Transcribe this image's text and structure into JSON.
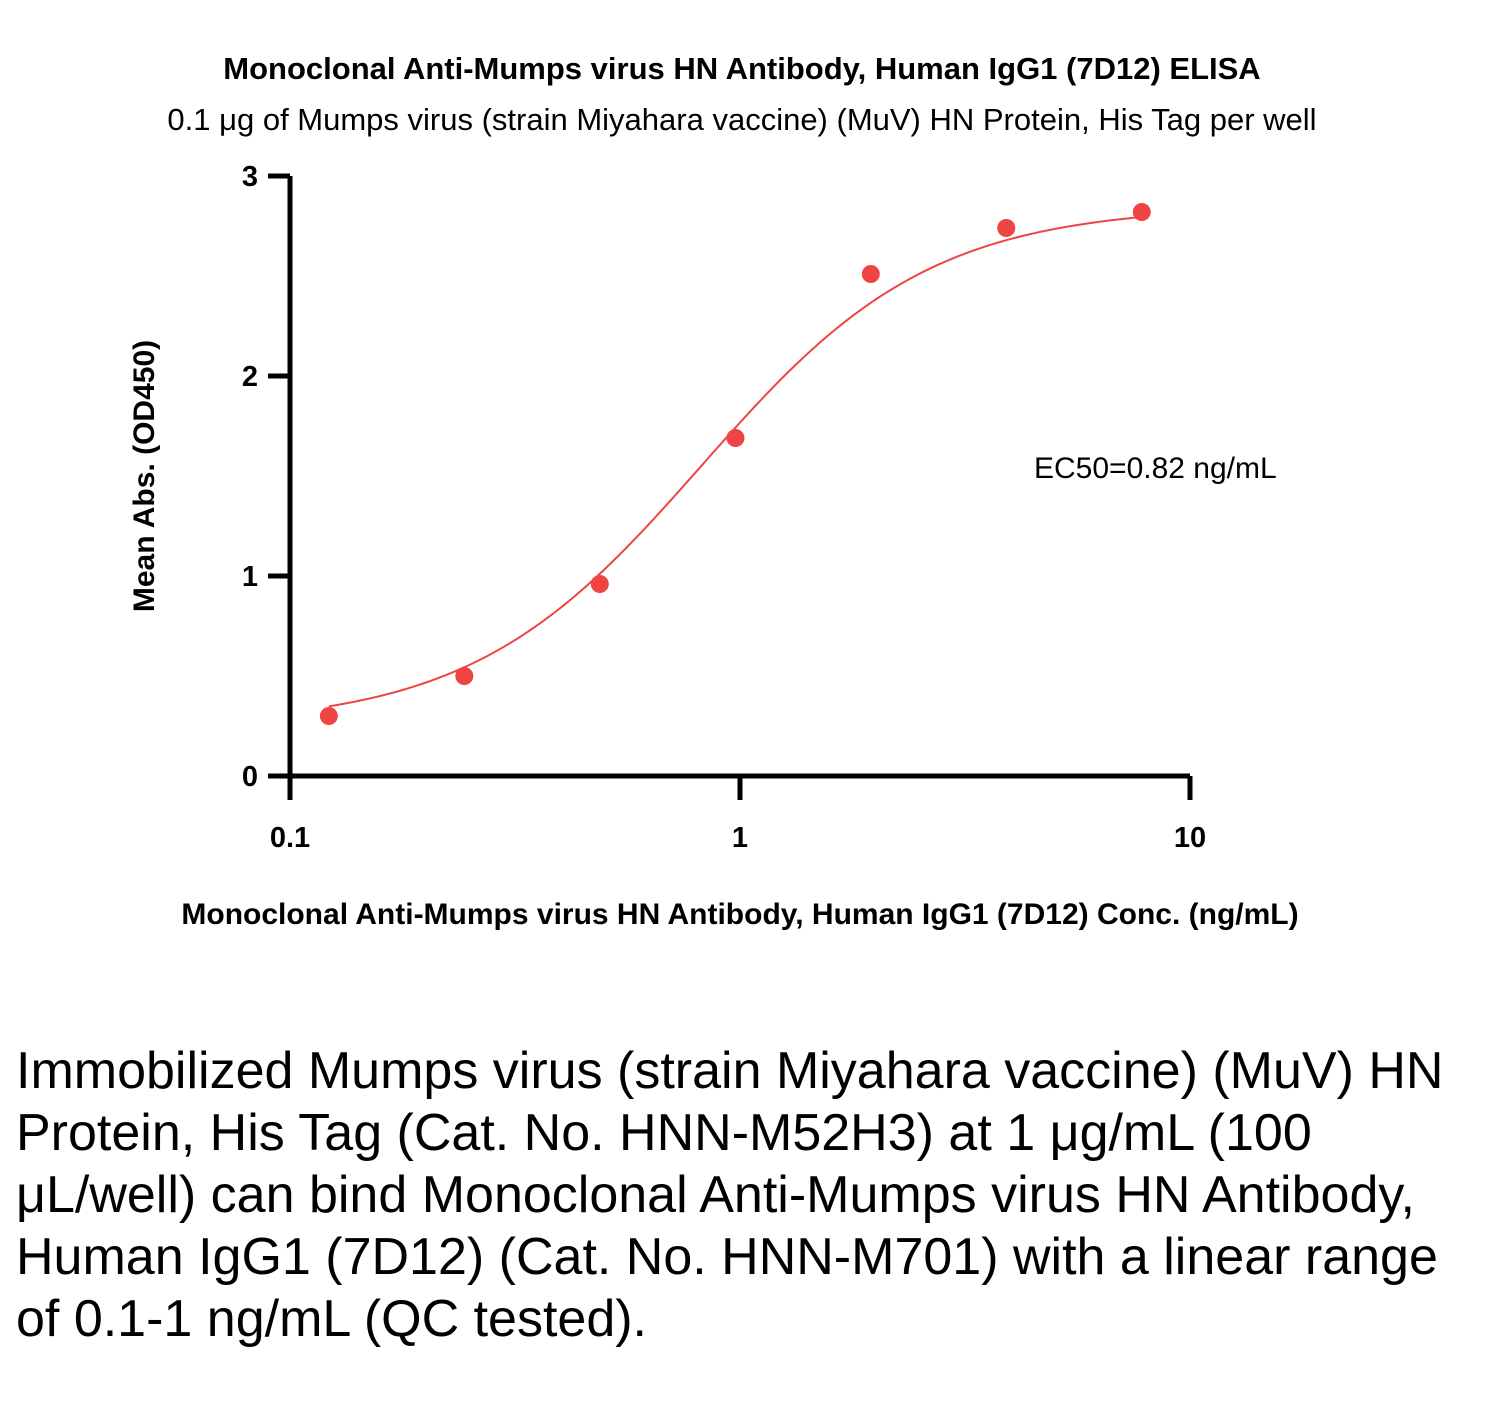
{
  "chart_data": {
    "type": "scatter",
    "title": "Monoclonal Anti-Mumps virus HN Antibody, Human IgG1 (7D12) ELISA",
    "subtitle": "0.1 μg of Mumps virus (strain Miyahara vaccine) (MuV) HN Protein, His Tag per well",
    "xlabel": "Monoclonal Anti-Mumps virus HN Antibody, Human IgG1 (7D12) Conc. (ng/mL)",
    "ylabel": "Mean Abs. (OD450)",
    "xscale": "log",
    "xlim": [
      0.1,
      10
    ],
    "ylim": [
      0,
      3
    ],
    "x_ticks": [
      "0.1",
      "1",
      "10"
    ],
    "y_ticks": [
      "0",
      "1",
      "2",
      "3"
    ],
    "grid": false,
    "x": [
      0.122,
      0.244,
      0.488,
      0.977,
      1.953,
      3.906,
      7.813
    ],
    "y": [
      0.3,
      0.5,
      0.96,
      1.69,
      2.51,
      2.74,
      2.82
    ],
    "fit_curve": {
      "model": "4PL",
      "bottom": 0.25,
      "top": 2.85,
      "ec50": 0.82,
      "hill": 1.7
    },
    "annotation": "EC50=0.82 ng/mL",
    "color": "#ef4444"
  },
  "caption": "Immobilized Mumps virus (strain Miyahara vaccine) (MuV) HN Protein, His Tag (Cat. No. HNN-M52H3) at 1 μg/mL (100 μL/well) can bind Monoclonal Anti-Mumps virus HN Antibody, Human IgG1 (7D12) (Cat. No. HNN-M701) with a linear range of 0.1-1 ng/mL (QC tested)."
}
